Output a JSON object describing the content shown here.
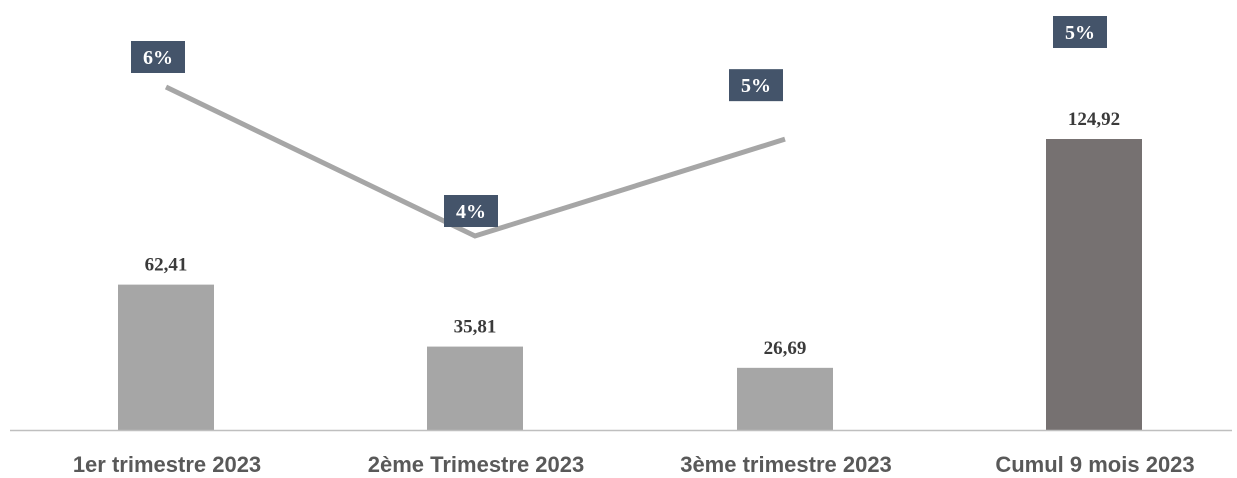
{
  "chart_data": {
    "type": "bar",
    "categories": [
      "1er trimestre 2023",
      "2ème Trimestre 2023",
      "3ème trimestre 2023",
      "Cumul 9 mois 2023"
    ],
    "values": [
      62.41,
      35.81,
      26.69,
      124.92
    ],
    "value_labels": [
      "62,41",
      "35,81",
      "26,69",
      "124,92"
    ],
    "line_series": {
      "values": [
        6,
        4,
        5.3
      ],
      "labels": [
        "6%",
        "4%",
        "5%"
      ]
    },
    "extra_label": "5%",
    "ylim": [
      0,
      170
    ],
    "grid": false,
    "legend": "none",
    "title": "",
    "xlabel": "",
    "ylabel": "",
    "colors": {
      "bar": "#a6a6a6",
      "bar_total": "#767171",
      "line": "#a6a6a6",
      "pct_box": "#44546a",
      "axis": "#bfbfbf"
    }
  }
}
